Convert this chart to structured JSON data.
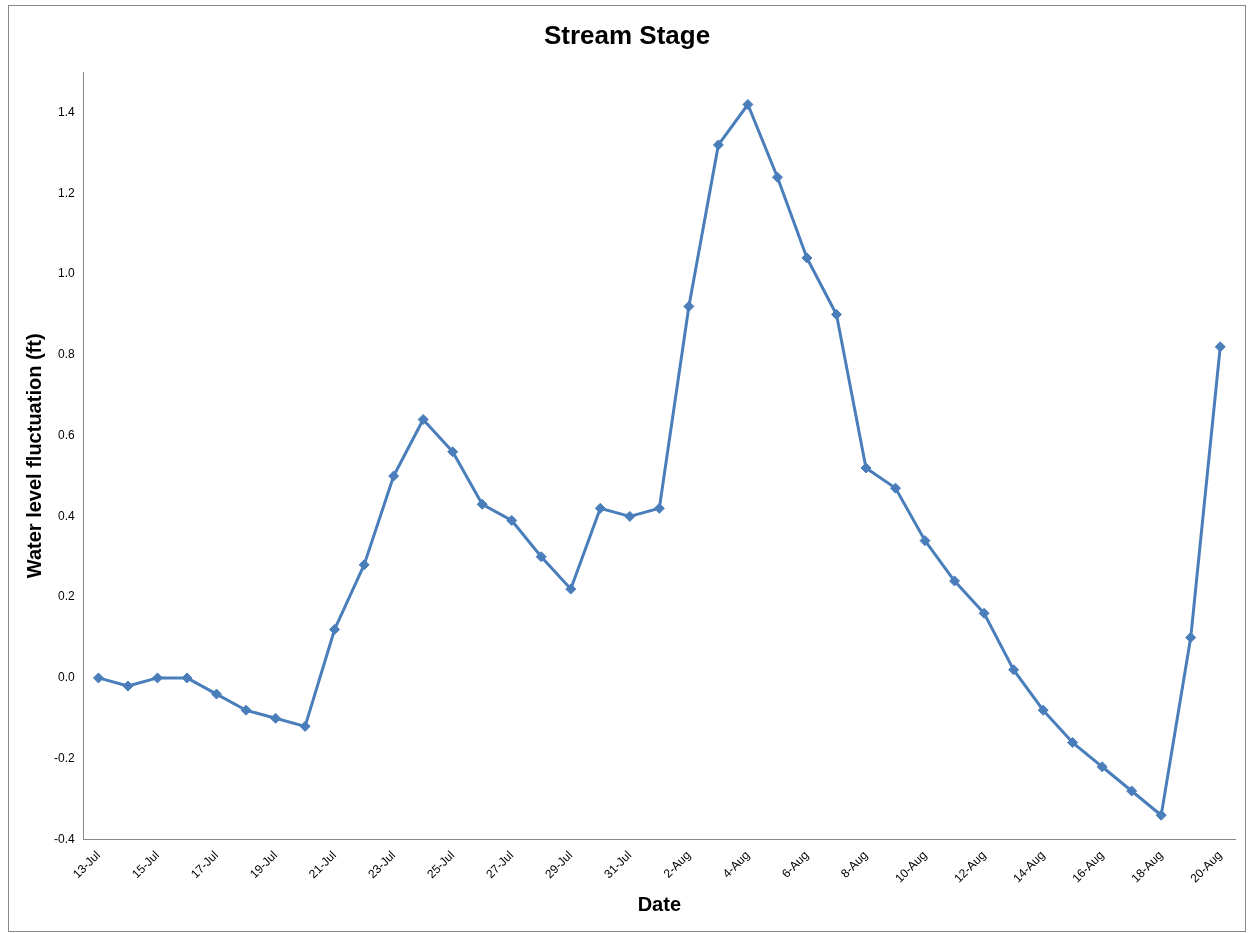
{
  "chart_data": {
    "type": "line",
    "title": "Stream Stage",
    "xlabel": "Date",
    "ylabel": "Water level fluctuation (ft)",
    "categories": [
      "13-Jul",
      null,
      "15-Jul",
      null,
      "17-Jul",
      null,
      "19-Jul",
      null,
      "21-Jul",
      null,
      "23-Jul",
      null,
      "25-Jul",
      null,
      "27-Jul",
      null,
      "29-Jul",
      null,
      "31-Jul",
      null,
      "2-Aug",
      null,
      "4-Aug",
      null,
      "6-Aug",
      null,
      "8-Aug",
      null,
      "10-Aug",
      null,
      "12-Aug",
      null,
      "14-Aug",
      null,
      "16-Aug",
      null,
      "18-Aug",
      null,
      "20-Aug"
    ],
    "series": [
      {
        "color": "#4a7ebb",
        "values": [
          0,
          -0.02,
          0,
          0,
          -0.04,
          -0.08,
          -0.1,
          -0.12,
          0.12,
          0.28,
          0.5,
          0.64,
          0.56,
          0.43,
          0.39,
          0.3,
          0.22,
          0.42,
          0.4,
          0.42,
          0.92,
          1.32,
          1.42,
          1.24,
          1.04,
          0.9,
          0.52,
          0.47,
          0.34,
          0.24,
          0.16,
          0.02,
          -0.08,
          -0.16,
          -0.22,
          -0.28,
          -0.34,
          0.1,
          0.82
        ]
      }
    ],
    "ylim": [
      -0.4,
      1.5
    ],
    "yticks": [
      -0.4,
      -0.2,
      {
        "value": 0,
        "label": "0.0"
      },
      0.2,
      0.4,
      0.6,
      0.8,
      {
        "value": 1,
        "label": "1.0"
      },
      1.2,
      1.4
    ],
    "grid": false,
    "legend": false,
    "marker": "diamond",
    "line_style": "solid"
  }
}
